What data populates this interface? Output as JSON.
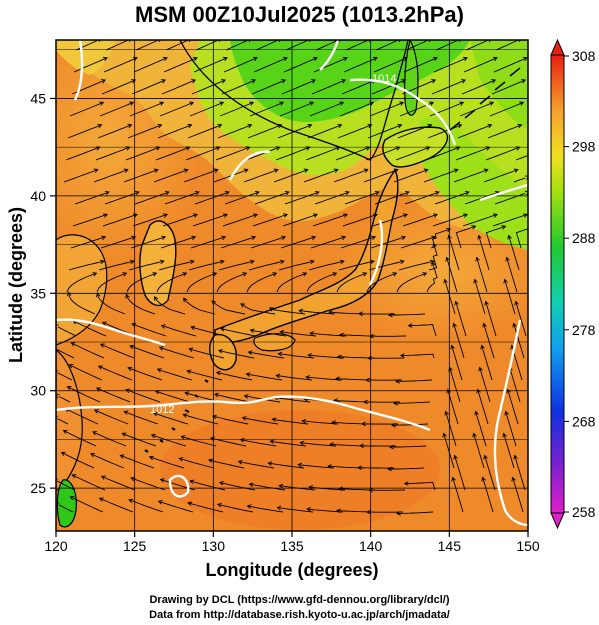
{
  "title": "MSM 00Z10Jul2025 (1013.2hPa)",
  "map": {
    "xlabel": "Longitude (degrees)",
    "ylabel": "Latitude  (degrees)",
    "lon_range": [
      120,
      150
    ],
    "lat_range": [
      22.8,
      48
    ],
    "lon_ticks": [
      "120",
      "125",
      "130",
      "135",
      "140",
      "145",
      "150"
    ],
    "lat_ticks": [
      "25",
      "30",
      "35",
      "40",
      "45"
    ],
    "contour_labels": [
      "1012",
      "1014"
    ]
  },
  "colorbar": {
    "ticks": [
      "308",
      "298",
      "288",
      "278",
      "268",
      "258"
    ],
    "min": 258,
    "max": 308
  },
  "credits": {
    "line1": "Drawing by DCL (https://www.gfd-dennou.org/library/dcl/)",
    "line2": "Data from http://database.rish.kyoto-u.ac.jp/arch/jmadata/"
  },
  "colors": {
    "ocean_warm": "#ee7d28",
    "ocean_mid": "#f3a22f",
    "cool": "#79e00a",
    "green": "#2fcf10",
    "contour": "#ffffff"
  }
}
